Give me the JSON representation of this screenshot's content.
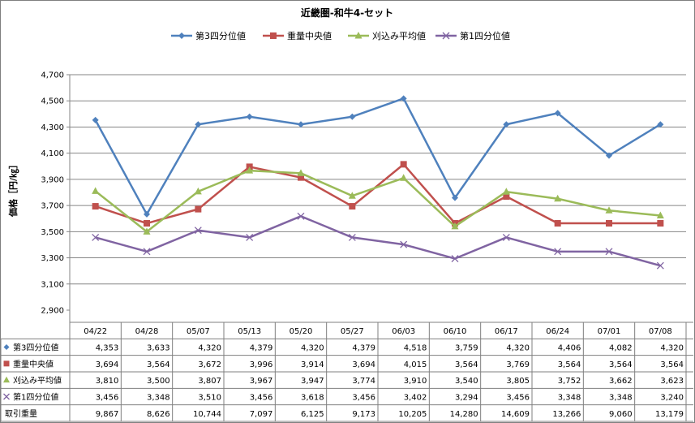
{
  "chart_data": {
    "type": "line",
    "title": "近畿圏-和牛4-セット",
    "ylabel": "価格［円/㎏］",
    "xlabel": "",
    "ylim": [
      2900,
      4700
    ],
    "yticks": [
      2900,
      3100,
      3300,
      3500,
      3700,
      3900,
      4100,
      4300,
      4500,
      4700
    ],
    "ytick_labels": [
      "2,900",
      "3,100",
      "3,300",
      "3,500",
      "3,700",
      "3,900",
      "4,100",
      "4,300",
      "4,500",
      "4,700"
    ],
    "grid": "horizontal",
    "legend_position": "top",
    "categories": [
      "04/22",
      "04/28",
      "05/07",
      "05/13",
      "05/20",
      "05/27",
      "06/03",
      "06/10",
      "06/17",
      "06/24",
      "07/01",
      "07/08"
    ],
    "series": [
      {
        "name": "第3四分位値",
        "color": "#4f81bd",
        "marker": "diamond",
        "values": [
          4353,
          3633,
          4320,
          4379,
          4320,
          4379,
          4518,
          3759,
          4320,
          4406,
          4082,
          4320
        ],
        "labels": [
          "4,353",
          "3,633",
          "4,320",
          "4,379",
          "4,320",
          "4,379",
          "4,518",
          "3,759",
          "4,320",
          "4,406",
          "4,082",
          "4,320"
        ]
      },
      {
        "name": "重量中央値",
        "color": "#c0504d",
        "marker": "square",
        "values": [
          3694,
          3564,
          3672,
          3996,
          3914,
          3694,
          4015,
          3564,
          3769,
          3564,
          3564,
          3564
        ],
        "labels": [
          "3,694",
          "3,564",
          "3,672",
          "3,996",
          "3,914",
          "3,694",
          "4,015",
          "3,564",
          "3,769",
          "3,564",
          "3,564",
          "3,564"
        ]
      },
      {
        "name": "刈込み平均値",
        "color": "#9bbb59",
        "marker": "triangle",
        "values": [
          3810,
          3500,
          3807,
          3967,
          3947,
          3774,
          3910,
          3540,
          3805,
          3752,
          3662,
          3623
        ],
        "labels": [
          "3,810",
          "3,500",
          "3,807",
          "3,967",
          "3,947",
          "3,774",
          "3,910",
          "3,540",
          "3,805",
          "3,752",
          "3,662",
          "3,623"
        ]
      },
      {
        "name": "第1四分位値",
        "color": "#8064a2",
        "marker": "x",
        "values": [
          3456,
          3348,
          3510,
          3456,
          3618,
          3456,
          3402,
          3294,
          3456,
          3348,
          3348,
          3240
        ],
        "labels": [
          "3,456",
          "3,348",
          "3,510",
          "3,456",
          "3,618",
          "3,456",
          "3,402",
          "3,294",
          "3,456",
          "3,348",
          "3,348",
          "3,240"
        ]
      }
    ],
    "table_extra_row": {
      "name": "取引重量",
      "values": [
        9867,
        8626,
        10744,
        7097,
        6125,
        9173,
        10205,
        14280,
        14609,
        13266,
        9060,
        13179
      ],
      "labels": [
        "9,867",
        "8,626",
        "10,744",
        "7,097",
        "6,125",
        "9,173",
        "10,205",
        "14,280",
        "14,609",
        "13,266",
        "9,060",
        "13,179"
      ]
    }
  }
}
